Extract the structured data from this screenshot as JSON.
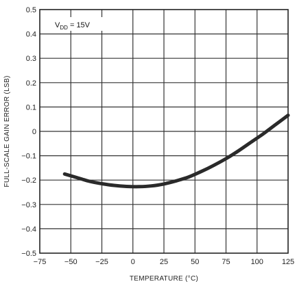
{
  "chart_data": {
    "type": "line",
    "title": "",
    "xlabel": "TEMPERATURE (°C)",
    "ylabel": "FULL-SCALE GAIN ERROR (LSB)",
    "xlim": [
      -75,
      125
    ],
    "ylim": [
      -0.5,
      0.5
    ],
    "xticks": [
      -75,
      -50,
      -25,
      0,
      25,
      50,
      75,
      100,
      125
    ],
    "yticks": [
      -0.5,
      -0.4,
      -0.3,
      -0.2,
      -0.1,
      0,
      0.1,
      0.2,
      0.3,
      0.4,
      0.5
    ],
    "xtick_labels": [
      "−75",
      "−50",
      "−25",
      "0",
      "25",
      "50",
      "75",
      "100",
      "125"
    ],
    "ytick_labels": [
      "−0.5",
      "−0.4",
      "−0.3",
      "−0.2",
      "−0.1",
      "0",
      "0.1",
      "0.2",
      "0.3",
      "0.4",
      "0.5"
    ],
    "grid": true,
    "annotation": {
      "main": "V",
      "sub": "DD",
      "rest": " = 15V"
    },
    "series": [
      {
        "x": [
          -55,
          -45,
          -35,
          -25,
          -15,
          -5,
          5,
          15,
          25,
          35,
          45,
          55,
          65,
          75,
          85,
          95,
          105,
          115,
          125
        ],
        "y": [
          -0.175,
          -0.19,
          -0.205,
          -0.215,
          -0.222,
          -0.226,
          -0.227,
          -0.224,
          -0.216,
          -0.203,
          -0.187,
          -0.165,
          -0.14,
          -0.112,
          -0.08,
          -0.045,
          -0.01,
          0.028,
          0.066
        ]
      }
    ],
    "line_color": "#2a2a2a"
  }
}
